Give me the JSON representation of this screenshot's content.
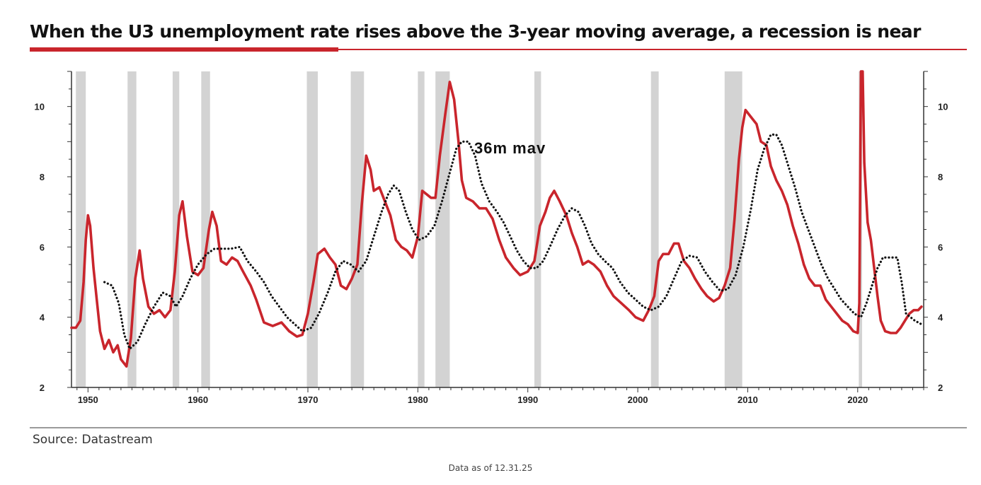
{
  "title": "When the U3 unemployment rate rises above the 3-year moving average, a recession is near",
  "source": "Source: Datastream",
  "footnote": "Data as of 12.31.25",
  "colors": {
    "accent": "#c9252c",
    "recession": "#d3d3d3",
    "mav": "#111111",
    "axis": "#333333"
  },
  "chart_data": {
    "type": "line",
    "xlim": [
      1948.5,
      2026
    ],
    "ylim": [
      2,
      11
    ],
    "x_ticks": [
      1950,
      1960,
      1970,
      1980,
      1990,
      2000,
      2010,
      2020
    ],
    "x_tick_labels": [
      "1950",
      "1960",
      "1970",
      "1980",
      "1990",
      "2000",
      "2010",
      "2020"
    ],
    "y_ticks": [
      2,
      4,
      6,
      8,
      10
    ],
    "y_tick_labels": [
      "2",
      "4",
      "6",
      "8",
      "10"
    ],
    "annotation": "36m mav",
    "recessions": [
      [
        1948.9,
        1949.8
      ],
      [
        1953.6,
        1954.4
      ],
      [
        1957.7,
        1958.3
      ],
      [
        1960.3,
        1961.1
      ],
      [
        1969.9,
        1970.9
      ],
      [
        1973.9,
        1975.1
      ],
      [
        1980.0,
        1980.6
      ],
      [
        1981.6,
        1982.9
      ],
      [
        1990.6,
        1991.2
      ],
      [
        2001.2,
        2001.9
      ],
      [
        2007.9,
        2009.5
      ],
      [
        2020.1,
        2020.4
      ]
    ],
    "series": [
      {
        "name": "U3 unemployment rate",
        "color": "#c9252c",
        "style": "solid",
        "points": [
          [
            1948.5,
            3.7
          ],
          [
            1948.9,
            3.7
          ],
          [
            1949.3,
            3.9
          ],
          [
            1949.6,
            5.0
          ],
          [
            1949.8,
            6.2
          ],
          [
            1950.0,
            6.9
          ],
          [
            1950.2,
            6.6
          ],
          [
            1950.5,
            5.4
          ],
          [
            1950.8,
            4.5
          ],
          [
            1951.1,
            3.6
          ],
          [
            1951.5,
            3.1
          ],
          [
            1951.9,
            3.35
          ],
          [
            1952.3,
            3.0
          ],
          [
            1952.7,
            3.2
          ],
          [
            1953.0,
            2.8
          ],
          [
            1953.5,
            2.6
          ],
          [
            1953.9,
            3.4
          ],
          [
            1954.3,
            5.1
          ],
          [
            1954.7,
            5.9
          ],
          [
            1955.0,
            5.1
          ],
          [
            1955.5,
            4.3
          ],
          [
            1956.0,
            4.1
          ],
          [
            1956.5,
            4.2
          ],
          [
            1957.0,
            4.0
          ],
          [
            1957.5,
            4.2
          ],
          [
            1957.9,
            5.3
          ],
          [
            1958.3,
            6.9
          ],
          [
            1958.6,
            7.3
          ],
          [
            1959.0,
            6.3
          ],
          [
            1959.5,
            5.3
          ],
          [
            1960.0,
            5.2
          ],
          [
            1960.5,
            5.4
          ],
          [
            1961.0,
            6.5
          ],
          [
            1961.3,
            7.0
          ],
          [
            1961.7,
            6.6
          ],
          [
            1962.1,
            5.6
          ],
          [
            1962.6,
            5.5
          ],
          [
            1963.1,
            5.7
          ],
          [
            1963.6,
            5.6
          ],
          [
            1964.1,
            5.3
          ],
          [
            1964.8,
            4.9
          ],
          [
            1965.3,
            4.5
          ],
          [
            1966.0,
            3.85
          ],
          [
            1966.8,
            3.75
          ],
          [
            1967.6,
            3.85
          ],
          [
            1968.3,
            3.6
          ],
          [
            1969.0,
            3.45
          ],
          [
            1969.5,
            3.5
          ],
          [
            1970.0,
            4.1
          ],
          [
            1970.5,
            5.0
          ],
          [
            1970.9,
            5.8
          ],
          [
            1971.5,
            5.95
          ],
          [
            1972.0,
            5.7
          ],
          [
            1972.5,
            5.5
          ],
          [
            1973.0,
            4.9
          ],
          [
            1973.5,
            4.8
          ],
          [
            1974.0,
            5.1
          ],
          [
            1974.5,
            5.5
          ],
          [
            1974.9,
            7.2
          ],
          [
            1975.3,
            8.6
          ],
          [
            1975.7,
            8.2
          ],
          [
            1976.0,
            7.6
          ],
          [
            1976.5,
            7.7
          ],
          [
            1977.0,
            7.3
          ],
          [
            1977.5,
            6.9
          ],
          [
            1978.0,
            6.2
          ],
          [
            1978.5,
            6.0
          ],
          [
            1979.0,
            5.9
          ],
          [
            1979.5,
            5.7
          ],
          [
            1980.0,
            6.3
          ],
          [
            1980.4,
            7.6
          ],
          [
            1980.8,
            7.5
          ],
          [
            1981.2,
            7.4
          ],
          [
            1981.6,
            7.4
          ],
          [
            1982.0,
            8.6
          ],
          [
            1982.5,
            9.8
          ],
          [
            1982.9,
            10.7
          ],
          [
            1983.3,
            10.2
          ],
          [
            1983.7,
            9.0
          ],
          [
            1984.0,
            7.9
          ],
          [
            1984.4,
            7.4
          ],
          [
            1985.0,
            7.3
          ],
          [
            1985.6,
            7.1
          ],
          [
            1986.2,
            7.1
          ],
          [
            1986.8,
            6.8
          ],
          [
            1987.4,
            6.2
          ],
          [
            1988.0,
            5.7
          ],
          [
            1988.7,
            5.4
          ],
          [
            1989.3,
            5.2
          ],
          [
            1990.0,
            5.3
          ],
          [
            1990.6,
            5.6
          ],
          [
            1991.1,
            6.6
          ],
          [
            1991.6,
            7.0
          ],
          [
            1992.0,
            7.4
          ],
          [
            1992.4,
            7.6
          ],
          [
            1992.9,
            7.3
          ],
          [
            1993.5,
            6.9
          ],
          [
            1994.0,
            6.4
          ],
          [
            1994.5,
            6.0
          ],
          [
            1995.0,
            5.5
          ],
          [
            1995.5,
            5.6
          ],
          [
            1996.0,
            5.5
          ],
          [
            1996.6,
            5.3
          ],
          [
            1997.2,
            4.9
          ],
          [
            1997.8,
            4.6
          ],
          [
            1998.5,
            4.4
          ],
          [
            1999.2,
            4.2
          ],
          [
            1999.8,
            4.0
          ],
          [
            2000.5,
            3.9
          ],
          [
            2001.0,
            4.2
          ],
          [
            2001.5,
            4.6
          ],
          [
            2001.9,
            5.6
          ],
          [
            2002.3,
            5.8
          ],
          [
            2002.8,
            5.8
          ],
          [
            2003.3,
            6.1
          ],
          [
            2003.7,
            6.1
          ],
          [
            2004.2,
            5.6
          ],
          [
            2004.7,
            5.4
          ],
          [
            2005.2,
            5.1
          ],
          [
            2005.8,
            4.8
          ],
          [
            2006.3,
            4.6
          ],
          [
            2006.9,
            4.45
          ],
          [
            2007.4,
            4.55
          ],
          [
            2007.9,
            4.9
          ],
          [
            2008.4,
            5.4
          ],
          [
            2008.8,
            6.8
          ],
          [
            2009.2,
            8.5
          ],
          [
            2009.5,
            9.4
          ],
          [
            2009.8,
            9.9
          ],
          [
            2010.3,
            9.7
          ],
          [
            2010.8,
            9.5
          ],
          [
            2011.2,
            9.0
          ],
          [
            2011.7,
            8.9
          ],
          [
            2012.1,
            8.3
          ],
          [
            2012.6,
            7.9
          ],
          [
            2013.1,
            7.6
          ],
          [
            2013.6,
            7.2
          ],
          [
            2014.1,
            6.6
          ],
          [
            2014.6,
            6.1
          ],
          [
            2015.1,
            5.5
          ],
          [
            2015.6,
            5.1
          ],
          [
            2016.1,
            4.9
          ],
          [
            2016.6,
            4.9
          ],
          [
            2017.1,
            4.5
          ],
          [
            2017.6,
            4.3
          ],
          [
            2018.1,
            4.1
          ],
          [
            2018.6,
            3.9
          ],
          [
            2019.1,
            3.8
          ],
          [
            2019.6,
            3.6
          ],
          [
            2020.0,
            3.55
          ],
          [
            2020.15,
            4.4
          ],
          [
            2020.3,
            11.0
          ],
          [
            2020.45,
            11.0
          ],
          [
            2020.6,
            8.4
          ],
          [
            2020.9,
            6.7
          ],
          [
            2021.2,
            6.2
          ],
          [
            2021.5,
            5.4
          ],
          [
            2021.8,
            4.6
          ],
          [
            2022.1,
            3.9
          ],
          [
            2022.5,
            3.6
          ],
          [
            2023.0,
            3.55
          ],
          [
            2023.5,
            3.55
          ],
          [
            2023.9,
            3.7
          ],
          [
            2024.3,
            3.9
          ],
          [
            2024.7,
            4.1
          ],
          [
            2025.1,
            4.2
          ],
          [
            2025.5,
            4.2
          ],
          [
            2025.8,
            4.3
          ]
        ]
      },
      {
        "name": "36m mav",
        "color": "#111111",
        "style": "dotted",
        "points": [
          [
            1951.5,
            5.0
          ],
          [
            1952.2,
            4.9
          ],
          [
            1952.8,
            4.4
          ],
          [
            1953.3,
            3.5
          ],
          [
            1953.8,
            3.1
          ],
          [
            1954.5,
            3.3
          ],
          [
            1955.2,
            3.8
          ],
          [
            1956.0,
            4.3
          ],
          [
            1956.8,
            4.7
          ],
          [
            1957.5,
            4.6
          ],
          [
            1958.0,
            4.3
          ],
          [
            1958.6,
            4.6
          ],
          [
            1959.3,
            5.1
          ],
          [
            1960.0,
            5.5
          ],
          [
            1960.8,
            5.8
          ],
          [
            1961.5,
            5.95
          ],
          [
            1962.3,
            5.95
          ],
          [
            1963.0,
            5.95
          ],
          [
            1963.8,
            6.0
          ],
          [
            1964.5,
            5.6
          ],
          [
            1965.3,
            5.3
          ],
          [
            1966.0,
            5.0
          ],
          [
            1966.7,
            4.6
          ],
          [
            1967.4,
            4.3
          ],
          [
            1968.1,
            4.0
          ],
          [
            1968.8,
            3.8
          ],
          [
            1969.5,
            3.6
          ],
          [
            1970.3,
            3.7
          ],
          [
            1971.0,
            4.1
          ],
          [
            1971.8,
            4.7
          ],
          [
            1972.5,
            5.3
          ],
          [
            1973.2,
            5.6
          ],
          [
            1973.9,
            5.5
          ],
          [
            1974.6,
            5.3
          ],
          [
            1975.3,
            5.6
          ],
          [
            1976.0,
            6.3
          ],
          [
            1976.7,
            7.0
          ],
          [
            1977.3,
            7.5
          ],
          [
            1977.8,
            7.75
          ],
          [
            1978.3,
            7.6
          ],
          [
            1978.9,
            7.0
          ],
          [
            1979.5,
            6.5
          ],
          [
            1980.1,
            6.2
          ],
          [
            1980.8,
            6.3
          ],
          [
            1981.5,
            6.6
          ],
          [
            1982.2,
            7.3
          ],
          [
            1982.8,
            8.0
          ],
          [
            1983.5,
            8.8
          ],
          [
            1984.0,
            9.0
          ],
          [
            1984.6,
            9.0
          ],
          [
            1985.2,
            8.6
          ],
          [
            1985.8,
            7.8
          ],
          [
            1986.5,
            7.3
          ],
          [
            1987.2,
            7.0
          ],
          [
            1987.8,
            6.7
          ],
          [
            1988.4,
            6.3
          ],
          [
            1989.0,
            5.9
          ],
          [
            1989.6,
            5.6
          ],
          [
            1990.2,
            5.4
          ],
          [
            1990.8,
            5.4
          ],
          [
            1991.4,
            5.6
          ],
          [
            1992.0,
            6.0
          ],
          [
            1992.7,
            6.5
          ],
          [
            1993.4,
            6.9
          ],
          [
            1994.0,
            7.1
          ],
          [
            1994.6,
            7.0
          ],
          [
            1995.2,
            6.6
          ],
          [
            1995.8,
            6.1
          ],
          [
            1996.4,
            5.8
          ],
          [
            1997.0,
            5.6
          ],
          [
            1997.7,
            5.4
          ],
          [
            1998.4,
            5.0
          ],
          [
            1999.1,
            4.7
          ],
          [
            1999.8,
            4.5
          ],
          [
            2000.5,
            4.3
          ],
          [
            2001.2,
            4.2
          ],
          [
            2001.9,
            4.3
          ],
          [
            2002.6,
            4.6
          ],
          [
            2003.3,
            5.1
          ],
          [
            2004.0,
            5.6
          ],
          [
            2004.7,
            5.75
          ],
          [
            2005.4,
            5.7
          ],
          [
            2006.1,
            5.3
          ],
          [
            2006.8,
            5.0
          ],
          [
            2007.5,
            4.75
          ],
          [
            2008.2,
            4.8
          ],
          [
            2008.9,
            5.2
          ],
          [
            2009.6,
            6.0
          ],
          [
            2010.3,
            7.1
          ],
          [
            2010.9,
            8.2
          ],
          [
            2011.5,
            8.8
          ],
          [
            2012.1,
            9.2
          ],
          [
            2012.6,
            9.2
          ],
          [
            2013.1,
            8.9
          ],
          [
            2013.7,
            8.3
          ],
          [
            2014.3,
            7.7
          ],
          [
            2014.9,
            7.0
          ],
          [
            2015.5,
            6.5
          ],
          [
            2016.1,
            6.0
          ],
          [
            2016.7,
            5.5
          ],
          [
            2017.3,
            5.1
          ],
          [
            2017.9,
            4.8
          ],
          [
            2018.5,
            4.5
          ],
          [
            2019.1,
            4.3
          ],
          [
            2019.7,
            4.1
          ],
          [
            2020.3,
            4.0
          ],
          [
            2020.8,
            4.4
          ],
          [
            2021.3,
            4.9
          ],
          [
            2021.8,
            5.4
          ],
          [
            2022.3,
            5.7
          ],
          [
            2022.9,
            5.7
          ],
          [
            2023.6,
            5.7
          ],
          [
            2024.0,
            5.0
          ],
          [
            2024.4,
            4.1
          ],
          [
            2024.8,
            4.0
          ],
          [
            2025.2,
            3.9
          ],
          [
            2025.8,
            3.8
          ]
        ]
      }
    ]
  }
}
